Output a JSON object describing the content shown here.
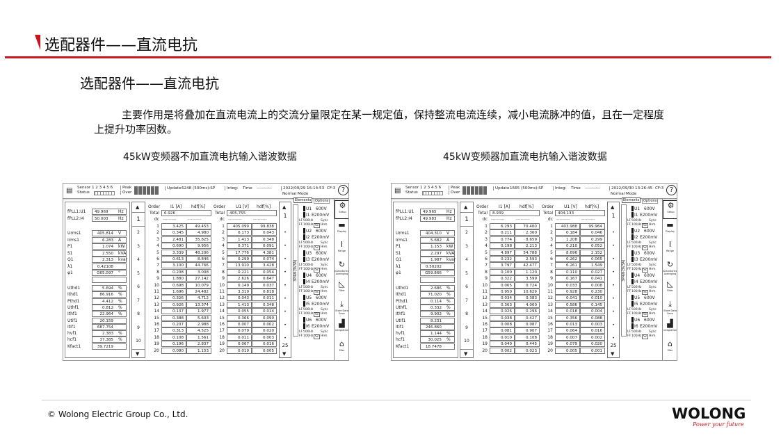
{
  "slide": {
    "header_title": "选配器件——直流电抗",
    "sub_title": "选配器件——直流电抗",
    "paragraph": "主要作用是将叠加在直流电流上的交流分量限定在某一规定值，保持整流电流连续，减小电流脉冲的值，且在一定程度上提升功率因数。",
    "caption_left": "45kW变频器不加直流电抗输入谐波数据",
    "caption_right": "45kW变频器加直流电抗输入谐波数据",
    "copyright": "© Wolong Electric Group Co., Ltd.",
    "logo_word": "WOLONG",
    "logo_slogan": "Power your future",
    "accent_color": "#c8161d"
  },
  "common": {
    "sensor": "Sensor 1 2 3 4 5 6",
    "status": "Status",
    "peak": "Peak",
    "over": "Over",
    "update_label": "Update",
    "integ_label": "Integ:",
    "time_label": "Time",
    "time_value": "-----:--:--",
    "mode": "Normal Mode",
    "cf": "CF:3",
    "help": "?",
    "tab_elements": "Elements",
    "tab_options": "Options",
    "wiring": "3P4W(3V3A)",
    "i_header": [
      "Order",
      "I1 [A]",
      "hdf[%]"
    ],
    "u_header": [
      "Order",
      "U1 [V]",
      "hdf[%]"
    ],
    "total_label": "Total",
    "dc_label": "dc",
    "dc_dash": "---------",
    "scroll_pages": [
      "1",
      "2",
      "3",
      "4",
      "5",
      "6",
      "7",
      "8",
      "9",
      "10"
    ],
    "element_scroll": [
      "1",
      "25"
    ],
    "elements": [
      {
        "u": "U1",
        "ur": "600V",
        "i": "I1",
        "ir": "E200mV"
      },
      {
        "u": "U2",
        "ur": "600V",
        "i": "I2",
        "ir": "E200mV"
      },
      {
        "u": "U3",
        "ur": "600V",
        "i": "I3",
        "ir": "E200mV"
      },
      {
        "u": "U4",
        "ur": "600V",
        "i": "I4",
        "ir": "E200mV"
      },
      {
        "u": "U5",
        "ur": "600V",
        "i": "I5",
        "ir": "E200mV"
      },
      {
        "u": "U6",
        "ur": "600V",
        "i": "I6",
        "ir": "E200mV"
      }
    ],
    "filter_lines": {
      "lf": "LF",
      "lf_val": "500Hz",
      "sync": "Sync",
      "ff": "FF",
      "ff_val": "100Hz",
      "sc": "Sc",
      "hrm": "Hrm"
    },
    "side_menu": [
      {
        "icon": "gear-icon",
        "label": "Setup"
      },
      {
        "icon": "display-icon",
        "label": "Display"
      },
      {
        "icon": "range-icon",
        "label": "Range"
      },
      {
        "icon": "refresh-icon",
        "label": "Instantaneous Averaging"
      },
      {
        "icon": "filter-icon",
        "label": "Filter"
      },
      {
        "icon": "store-icon",
        "label": "Store Data Save"
      },
      {
        "icon": "integration-icon",
        "label": "Integration"
      },
      {
        "icon": "toolbox-icon",
        "label": "Misc"
      }
    ]
  },
  "panels": [
    {
      "update": "6248 (500ms):SP",
      "datetime": "2022/09/29 16:14:53",
      "fpll": [
        [
          "fPLL1:U1",
          "49.969",
          "Hz"
        ],
        [
          "fPLL2:I4",
          "50.003",
          "Hz"
        ]
      ],
      "meas1": [
        [
          "Urms1",
          "405.814",
          "V"
        ],
        [
          "Irms1",
          "6.283",
          "A"
        ],
        [
          "P1",
          "1.074",
          "kW"
        ],
        [
          "S1",
          "2.550",
          "kVA"
        ],
        [
          "Q1",
          "2.313",
          "kvar"
        ],
        [
          "λ1",
          "0.42108",
          ""
        ],
        [
          "φ1",
          "G65.097",
          "°"
        ]
      ],
      "meas2": [
        [
          "Uthd1",
          "5.694",
          "%"
        ],
        [
          "Ithd1",
          "86.916",
          "%"
        ],
        [
          "Pthd1",
          "4.412",
          "%"
        ],
        [
          "Uthf1",
          "0.812",
          "%"
        ],
        [
          "Ithf1",
          "22.964",
          "%"
        ],
        [
          "Utif1",
          "20.159",
          ""
        ],
        [
          "Itif1",
          "687.754",
          ""
        ],
        [
          "hvf1",
          "2.383",
          "%"
        ],
        [
          "hcf1",
          "37.385",
          "%"
        ],
        [
          "Kfact1",
          "39.7219",
          ""
        ]
      ],
      "i_total": "6.926",
      "i_rows": [
        [
          "3.425",
          "49.453"
        ],
        [
          "0.345",
          "4.980"
        ],
        [
          "2.481",
          "35.825"
        ],
        [
          "0.690",
          "9.956"
        ],
        [
          "3.339",
          "48.206"
        ],
        [
          "0.613",
          "8.846"
        ],
        [
          "3.100",
          "44.766"
        ],
        [
          "0.208",
          "3.008"
        ],
        [
          "1.880",
          "27.142"
        ],
        [
          "0.698",
          "10.079"
        ],
        [
          "1.696",
          "24.482"
        ],
        [
          "0.326",
          "4.712"
        ],
        [
          "0.926",
          "13.374"
        ],
        [
          "0.137",
          "1.977"
        ],
        [
          "0.388",
          "5.603"
        ],
        [
          "0.207",
          "2.988"
        ],
        [
          "0.313",
          "4.525"
        ],
        [
          "0.108",
          "1.561"
        ],
        [
          "0.196",
          "2.837"
        ],
        [
          "0.080",
          "1.153"
        ]
      ],
      "u_total": "405.755",
      "u_rows": [
        [
          "405.099",
          "99.838"
        ],
        [
          "0.173",
          "0.043"
        ],
        [
          "1.413",
          "0.348"
        ],
        [
          "0.371",
          "0.091"
        ],
        [
          "17.776",
          "4.381"
        ],
        [
          "0.299",
          "0.074"
        ],
        [
          "13.910",
          "3.428"
        ],
        [
          "0.221",
          "0.054"
        ],
        [
          "2.626",
          "0.647"
        ],
        [
          "0.149",
          "0.037"
        ],
        [
          "3.319",
          "0.818"
        ],
        [
          "0.043",
          "0.011"
        ],
        [
          "1.413",
          "0.348"
        ],
        [
          "0.055",
          "0.014"
        ],
        [
          "0.366",
          "0.090"
        ],
        [
          "0.007",
          "0.002"
        ],
        [
          "0.079",
          "0.020"
        ],
        [
          "0.011",
          "0.003"
        ],
        [
          "0.067",
          "0.016"
        ],
        [
          "0.019",
          "0.005"
        ]
      ]
    },
    {
      "update": "1665 (500ms):SP",
      "datetime": "2022/09/30 13:26:45",
      "fpll": [
        [
          "fPLL1:U1",
          "49.965",
          "Hz"
        ],
        [
          "fPLL2:I4",
          "49.983",
          "Hz"
        ]
      ],
      "meas1": [
        [
          "Urms1",
          "404.310",
          "V"
        ],
        [
          "Irms1",
          "5.682",
          "A"
        ],
        [
          "P1",
          "1.153",
          "kW"
        ],
        [
          "S1",
          "2.297",
          "kVA"
        ],
        [
          "Q1",
          "1.987",
          "kvar"
        ],
        [
          "λ1",
          "0.50202",
          ""
        ],
        [
          "φ1",
          "G59.866",
          "°"
        ]
      ],
      "meas2": [
        [
          "Uthd1",
          "2.686",
          "%"
        ],
        [
          "Ithd1",
          "71.020",
          "%"
        ],
        [
          "Pthd1",
          "0.114",
          "%"
        ],
        [
          "Uthf1",
          "0.332",
          "%"
        ],
        [
          "Ithf1",
          "9.902",
          "%"
        ],
        [
          "Utif1",
          "8.231",
          ""
        ],
        [
          "Itif1",
          "246.860",
          ""
        ],
        [
          "hvf1",
          "1.144",
          "%"
        ],
        [
          "hcf1",
          "30.025",
          "%"
        ],
        [
          "Kfact1",
          "18.7478",
          ""
        ]
      ],
      "i_total": "8.939",
      "i_rows": [
        [
          "6.293",
          "70.400"
        ],
        [
          "0.211",
          "2.360"
        ],
        [
          "0.774",
          "8.659"
        ],
        [
          "0.198",
          "2.213"
        ],
        [
          "4.897",
          "54.788"
        ],
        [
          "0.232",
          "2.593"
        ],
        [
          "3.797",
          "42.477"
        ],
        [
          "0.100",
          "1.120"
        ],
        [
          "0.322",
          "3.599"
        ],
        [
          "0.065",
          "0.724"
        ],
        [
          "0.950",
          "10.629"
        ],
        [
          "0.034",
          "0.383"
        ],
        [
          "0.363",
          "4.060"
        ],
        [
          "0.026",
          "0.296"
        ],
        [
          "0.038",
          "0.427"
        ],
        [
          "0.008",
          "0.087"
        ],
        [
          "0.081",
          "0.907"
        ],
        [
          "0.010",
          "0.108"
        ],
        [
          "0.040",
          "0.445"
        ],
        [
          "0.002",
          "0.023"
        ]
      ],
      "u_total": "404.133",
      "u_rows": [
        [
          "403.988",
          "99.964"
        ],
        [
          "0.184",
          "0.046"
        ],
        [
          "1.208",
          "0.299"
        ],
        [
          "0.210",
          "0.052"
        ],
        [
          "8.696",
          "2.152"
        ],
        [
          "0.262",
          "0.065"
        ],
        [
          "6.261",
          "1.549"
        ],
        [
          "0.110",
          "0.027"
        ],
        [
          "0.167",
          "0.041"
        ],
        [
          "0.033",
          "0.008"
        ],
        [
          "0.928",
          "0.230"
        ],
        [
          "0.041",
          "0.010"
        ],
        [
          "0.586",
          "0.145"
        ],
        [
          "0.018",
          "0.004"
        ],
        [
          "0.356",
          "0.088"
        ],
        [
          "0.013",
          "0.003"
        ],
        [
          "0.064",
          "0.016"
        ],
        [
          "0.007",
          "0.002"
        ],
        [
          "0.079",
          "0.020"
        ],
        [
          "0.005",
          "0.001"
        ]
      ]
    }
  ]
}
